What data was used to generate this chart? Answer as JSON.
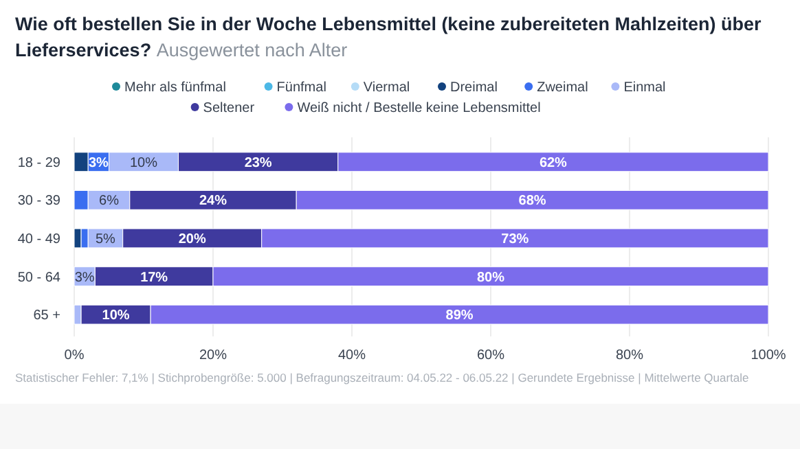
{
  "chart_data": {
    "type": "bar",
    "orientation": "horizontal",
    "stacked": true,
    "title": "Wie oft bestellen Sie in der Woche Lebensmittel (keine zubereiteten Mahlzeiten) über Lieferservices?",
    "subtitle": "Ausgewertet nach Alter",
    "categories": [
      "18 - 29",
      "30 - 39",
      "40 - 49",
      "50 - 64",
      "65 +"
    ],
    "series": [
      {
        "name": "Mehr als fünfmal",
        "color": "#1e8a9a",
        "values": [
          0,
          0,
          0,
          0,
          0
        ],
        "value_labels": [
          null,
          null,
          null,
          null,
          null
        ]
      },
      {
        "name": "Fünfmal",
        "color": "#4cb8e6",
        "values": [
          0,
          0,
          0,
          0,
          0
        ],
        "value_labels": [
          null,
          null,
          null,
          null,
          null
        ]
      },
      {
        "name": "Viermal",
        "color": "#b5dcf7",
        "values": [
          0,
          0,
          0,
          0,
          0
        ],
        "value_labels": [
          null,
          null,
          null,
          null,
          null
        ]
      },
      {
        "name": "Dreimal",
        "color": "#12427e",
        "values": [
          2,
          0,
          1,
          0,
          0
        ],
        "value_labels": [
          null,
          null,
          null,
          null,
          null
        ]
      },
      {
        "name": "Zweimal",
        "color": "#3a6ef0",
        "values": [
          3,
          2,
          1,
          0,
          0
        ],
        "value_labels": [
          "3%",
          null,
          null,
          null,
          null
        ]
      },
      {
        "name": "Einmal",
        "color": "#a9b9f8",
        "values": [
          10,
          6,
          5,
          3,
          1
        ],
        "value_labels": [
          "10%",
          "6%",
          "5%",
          "3%",
          null
        ]
      },
      {
        "name": "Seltener",
        "color": "#3f3a9e",
        "values": [
          23,
          24,
          20,
          17,
          10
        ],
        "value_labels": [
          "23%",
          "24%",
          "20%",
          "17%",
          "10%"
        ]
      },
      {
        "name": "Weiß nicht / Bestelle keine Lebensmittel",
        "color": "#7b6cec",
        "values": [
          62,
          68,
          73,
          80,
          89
        ],
        "value_labels": [
          "62%",
          "68%",
          "73%",
          "80%",
          "89%"
        ]
      }
    ],
    "xlim": [
      0,
      100
    ],
    "xticks": [
      {
        "value": 0,
        "label": "0%"
      },
      {
        "value": 20,
        "label": "20%"
      },
      {
        "value": 40,
        "label": "40%"
      },
      {
        "value": 60,
        "label": "60%"
      },
      {
        "value": 80,
        "label": "80%"
      },
      {
        "value": 100,
        "label": "100%"
      }
    ],
    "grid": "x",
    "legend": "top",
    "annotations": [
      "Statistischer Fehler: 7,1% | Stichprobengröße: 5.000 | Befragungszeitraum: 04.05.22 - 06.05.22 | Gerundete Ergebnisse | Mittelwerte Quartale"
    ]
  }
}
